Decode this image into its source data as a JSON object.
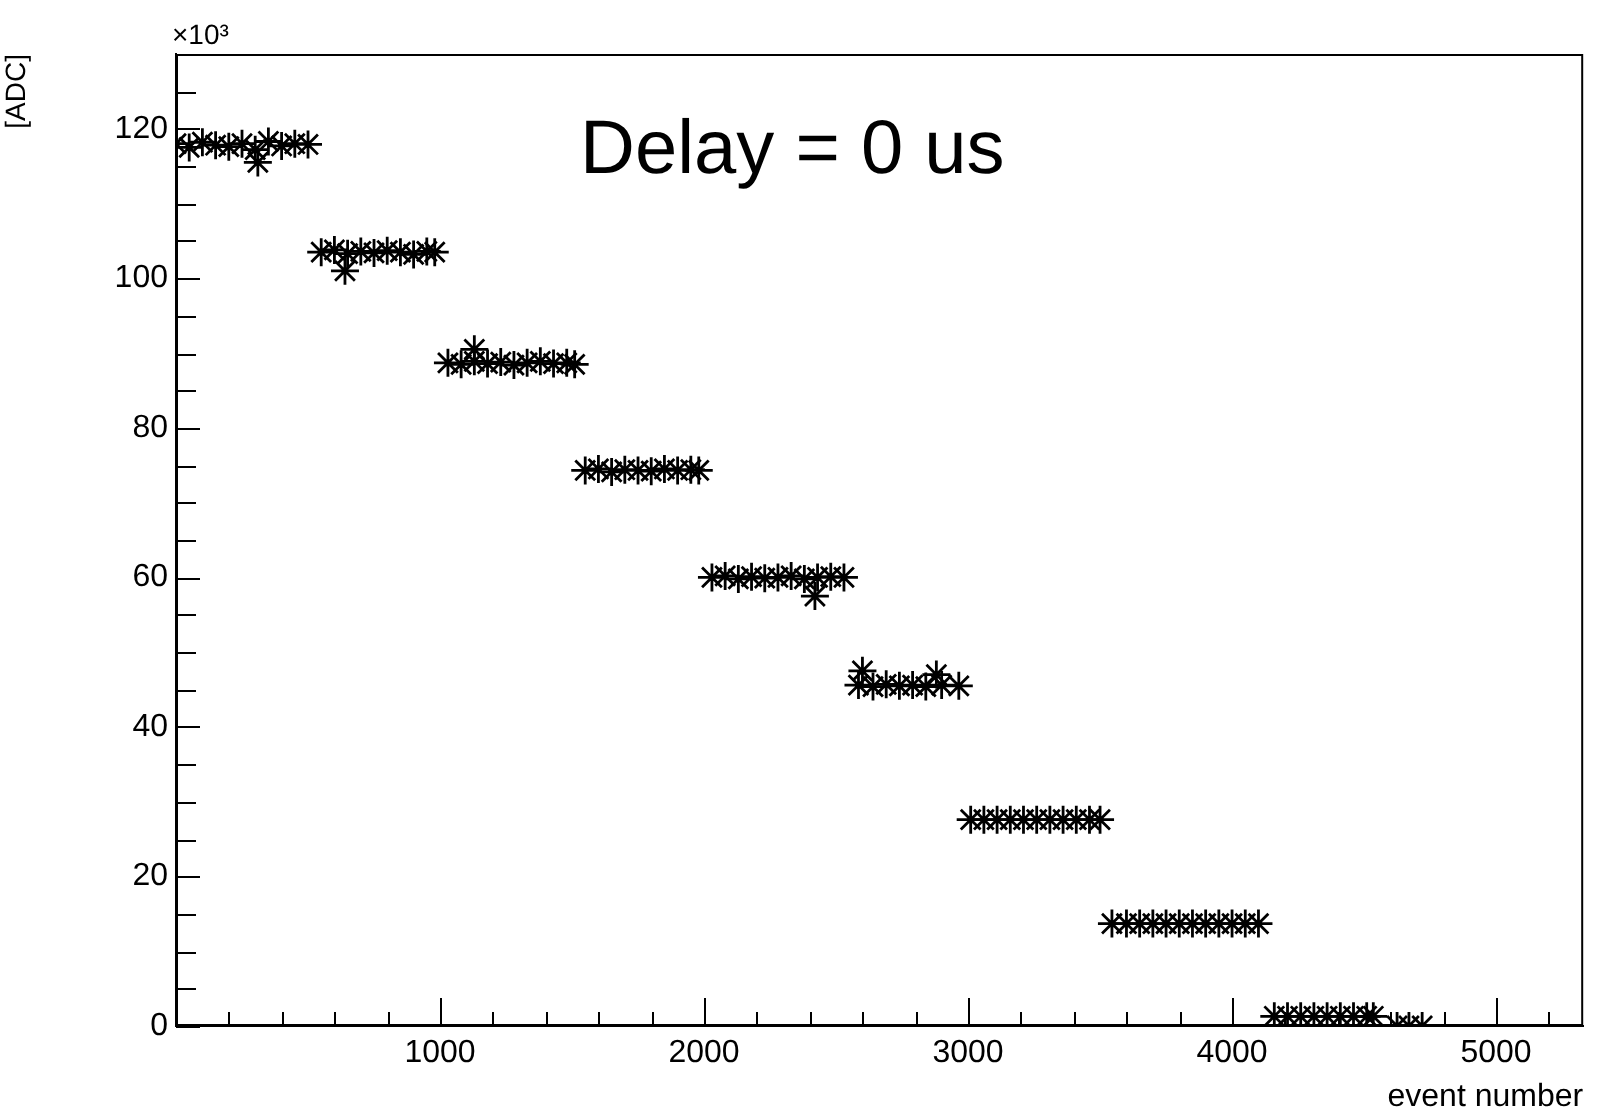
{
  "chart_data": {
    "type": "scatter",
    "title": "Delay = 0 us",
    "xlabel": "event number",
    "ylabel": "[ADC]",
    "annotations": [
      "×10³"
    ],
    "marker": "cross",
    "xlim": [
      0,
      5330
    ],
    "ylim": [
      0,
      130
    ],
    "xticks": [
      {
        "value": 200,
        "label": null
      },
      {
        "value": 400,
        "label": null
      },
      {
        "value": 600,
        "label": null
      },
      {
        "value": 800,
        "label": null
      },
      1000,
      {
        "value": 1200,
        "label": null
      },
      {
        "value": 1400,
        "label": null
      },
      {
        "value": 1600,
        "label": null
      },
      {
        "value": 1800,
        "label": null
      },
      2000,
      {
        "value": 2200,
        "label": null
      },
      {
        "value": 2400,
        "label": null
      },
      {
        "value": 2600,
        "label": null
      },
      {
        "value": 2800,
        "label": null
      },
      3000,
      {
        "value": 3200,
        "label": null
      },
      {
        "value": 3400,
        "label": null
      },
      {
        "value": 3600,
        "label": null
      },
      {
        "value": 3800,
        "label": null
      },
      4000,
      {
        "value": 4200,
        "label": null
      },
      {
        "value": 4400,
        "label": null
      },
      {
        "value": 4600,
        "label": null
      },
      {
        "value": 4800,
        "label": null
      },
      5000,
      {
        "value": 5200,
        "label": null
      }
    ],
    "yticks": [
      0,
      {
        "value": 5,
        "label": null
      },
      {
        "value": 10,
        "label": null
      },
      {
        "value": 15,
        "label": null
      },
      20,
      {
        "value": 25,
        "label": null
      },
      {
        "value": 30,
        "label": null
      },
      {
        "value": 35,
        "label": null
      },
      40,
      {
        "value": 45,
        "label": null
      },
      {
        "value": 50,
        "label": null
      },
      {
        "value": 55,
        "label": null
      },
      60,
      {
        "value": 65,
        "label": null
      },
      {
        "value": 70,
        "label": null
      },
      {
        "value": 75,
        "label": null
      },
      80,
      {
        "value": 85,
        "label": null
      },
      {
        "value": 90,
        "label": null
      },
      {
        "value": 95,
        "label": null
      },
      100,
      {
        "value": 105,
        "label": null
      },
      {
        "value": 110,
        "label": null
      },
      {
        "value": 115,
        "label": null
      },
      120,
      {
        "value": 125,
        "label": null
      }
    ],
    "series": [
      {
        "color": "#000000",
        "x": [
          0,
          50,
          100,
          150,
          200,
          250,
          300,
          310,
          350,
          400,
          450,
          500,
          550,
          600,
          640,
          650,
          700,
          750,
          800,
          850,
          900,
          950,
          980,
          1030,
          1080,
          1130,
          1130,
          1180,
          1230,
          1280,
          1330,
          1380,
          1430,
          1480,
          1510,
          1550,
          1600,
          1650,
          1700,
          1750,
          1800,
          1850,
          1900,
          1950,
          1980,
          2030,
          2080,
          2130,
          2180,
          2230,
          2280,
          2330,
          2380,
          2420,
          2430,
          2480,
          2530,
          2585,
          2600,
          2640,
          2690,
          2740,
          2790,
          2840,
          2880,
          2900,
          2965,
          3010,
          3060,
          3110,
          3160,
          3210,
          3260,
          3310,
          3360,
          3410,
          3460,
          3500,
          3545,
          3600,
          3650,
          3700,
          3750,
          3800,
          3850,
          3900,
          3950,
          4000,
          4050,
          4100,
          4160,
          4210,
          4260,
          4310,
          4360,
          4410,
          4460,
          4510,
          4535,
          4625,
          4670,
          4720
        ],
        "values": [
          118,
          117.5,
          118.2,
          117.8,
          117.6,
          118,
          117.2,
          115.5,
          118.3,
          117.7,
          118,
          117.9,
          103.5,
          103.8,
          101,
          103.3,
          103.6,
          103.4,
          103.7,
          103.5,
          103.2,
          103.6,
          103.5,
          88.7,
          88.5,
          88.9,
          90.5,
          88.6,
          88.8,
          88.4,
          88.7,
          88.9,
          88.6,
          88.7,
          88.5,
          74.3,
          74.5,
          74.1,
          74.4,
          74.3,
          74.2,
          74.5,
          74.3,
          74.4,
          74.3,
          60,
          60.2,
          59.8,
          60.1,
          59.9,
          60,
          60.2,
          59.8,
          57.5,
          60,
          60.1,
          60,
          45.6,
          47.5,
          45.4,
          45.7,
          45.5,
          45.6,
          45.4,
          47,
          45.6,
          45.5,
          27.6,
          27.6,
          27.6,
          27.6,
          27.6,
          27.6,
          27.6,
          27.6,
          27.6,
          27.6,
          27.6,
          13.7,
          13.7,
          13.7,
          13.7,
          13.7,
          13.7,
          13.7,
          13.7,
          13.7,
          13.7,
          13.7,
          13.7,
          1.3,
          1.3,
          1.3,
          1.3,
          1.3,
          1.3,
          1.3,
          1.3,
          1.3,
          0,
          0,
          0
        ]
      }
    ]
  }
}
